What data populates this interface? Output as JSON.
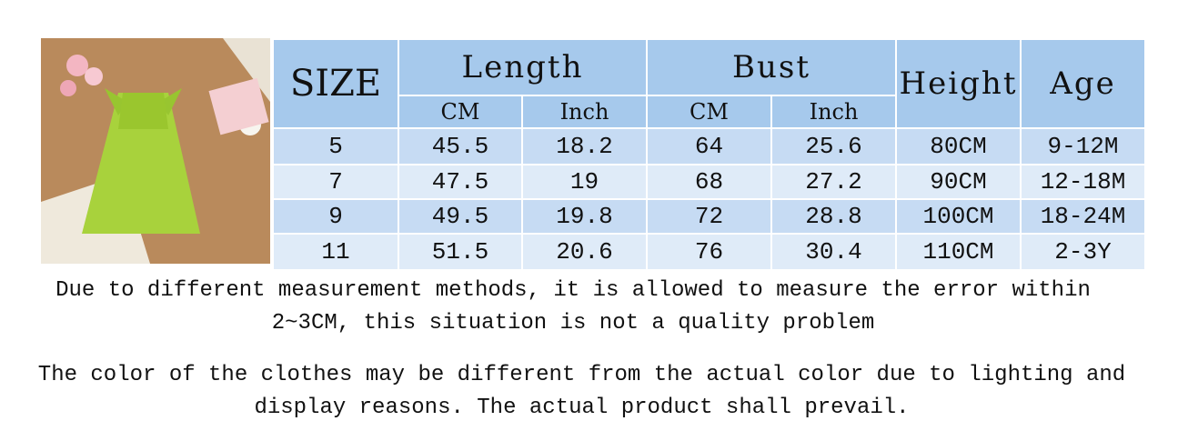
{
  "table": {
    "header": {
      "size": "SIZE",
      "length": "Length",
      "bust": "Bust",
      "height": "Height",
      "age": "Age",
      "length_units": [
        "CM",
        "Inch"
      ],
      "bust_units": [
        "CM",
        "Inch"
      ]
    },
    "rows": [
      [
        "5",
        "45.5",
        "18.2",
        "64",
        "25.6",
        "80CM",
        "9-12M"
      ],
      [
        "7",
        "47.5",
        "19",
        "68",
        "27.2",
        "90CM",
        "12-18M"
      ],
      [
        "9",
        "49.5",
        "19.8",
        "72",
        "28.8",
        "100CM",
        "18-24M"
      ],
      [
        "11",
        "51.5",
        "20.6",
        "76",
        "30.4",
        "110CM",
        "2-3Y"
      ]
    ]
  },
  "notes": [
    "Due to different measurement methods, it is allowed to measure the error within 2~3CM, this situation is not a quality problem",
    "The color of the clothes may be different from the actual color due to lighting and display reasons. The actual product shall prevail."
  ]
}
